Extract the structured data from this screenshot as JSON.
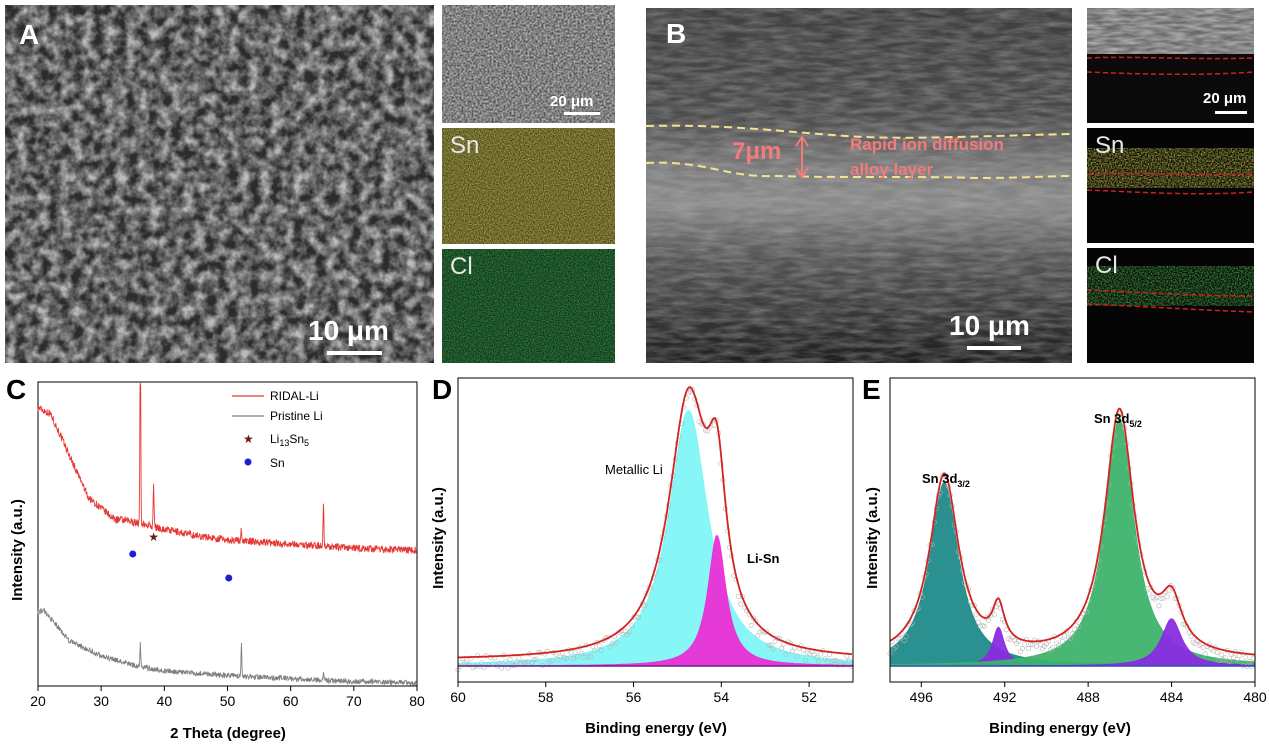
{
  "panels": {
    "A": {
      "letter": "A",
      "scale_main": "10 μm",
      "scale_inset": "20 μm",
      "map1": "Sn",
      "map2": "Cl"
    },
    "B": {
      "letter": "B",
      "scale_main": "10 μm",
      "scale_inset": "20 μm",
      "thickness": "7μm",
      "annotation_line1": "Rapid ion diffusion",
      "annotation_line2": "alloy layer",
      "map1": "Sn",
      "map2": "Cl"
    }
  },
  "colors": {
    "ridal": "#e53935",
    "pristine": "#808080",
    "li13sn5_marker": "#6b1a1a",
    "sn_marker": "#1f1fd1",
    "metallic_li_fill": "#7ff5f7",
    "li_sn_fill": "#ea2fd5",
    "envelope": "#d3221f",
    "sn32_fill": "#1f8a8a",
    "sn52_fill": "#3db36b",
    "minor_fill": "#8a2be2",
    "baseline": "#2a4db5"
  },
  "chart_data": [
    {
      "panel": "C",
      "type": "line",
      "xlabel": "2 Theta (degree)",
      "ylabel": "Intensity (a.u.)",
      "xlim": [
        20,
        80
      ],
      "xticks": [
        20,
        30,
        40,
        50,
        60,
        70,
        80
      ],
      "legend": {
        "position": "top-right",
        "entries": [
          "RIDAL-Li",
          "Pristine Li",
          "Li13Sn5",
          "Sn"
        ]
      },
      "series": [
        {
          "name": "RIDAL-Li",
          "peaks": [
            [
              36.2,
              1.0
            ],
            [
              38.3,
              0.22
            ],
            [
              52.2,
              0.06
            ],
            [
              65.2,
              0.22
            ]
          ],
          "background": [
            [
              20,
              0.85
            ],
            [
              22,
              0.82
            ],
            [
              25,
              0.62
            ],
            [
              28,
              0.42
            ],
            [
              32,
              0.32
            ],
            [
              36,
              0.3
            ],
            [
              40,
              0.27
            ],
            [
              45,
              0.24
            ],
            [
              50,
              0.22
            ],
            [
              55,
              0.21
            ],
            [
              60,
              0.2
            ],
            [
              65,
              0.19
            ],
            [
              70,
              0.18
            ],
            [
              80,
              0.17
            ]
          ]
        },
        {
          "name": "Pristine Li",
          "peaks": [
            [
              36.2,
              0.15
            ],
            [
              52.2,
              0.22
            ],
            [
              65.2,
              0.04
            ]
          ],
          "background": [
            [
              20,
              0.5
            ],
            [
              21,
              0.5
            ],
            [
              25,
              0.3
            ],
            [
              30,
              0.2
            ],
            [
              35,
              0.14
            ],
            [
              40,
              0.1
            ],
            [
              50,
              0.07
            ],
            [
              60,
              0.05
            ],
            [
              70,
              0.03
            ],
            [
              80,
              0.02
            ]
          ]
        }
      ],
      "markers": [
        {
          "type": "Li13Sn5",
          "x": 38.3
        },
        {
          "type": "Sn",
          "x": 35.0
        },
        {
          "type": "Sn",
          "x": 50.2
        }
      ]
    },
    {
      "panel": "D",
      "type": "area",
      "xlabel": "Binding energy (eV)",
      "ylabel": "Intensity (a.u.)",
      "xlim": [
        60,
        51
      ],
      "xticks": [
        60,
        58,
        56,
        54,
        52
      ],
      "annotations": [
        "Metallic Li",
        "Li-Sn"
      ],
      "series": [
        {
          "name": "Metallic Li",
          "center": 54.75,
          "height": 0.92,
          "width": 0.55
        },
        {
          "name": "Li-Sn",
          "center": 54.1,
          "height": 0.47,
          "width": 0.25
        }
      ]
    },
    {
      "panel": "E",
      "type": "area",
      "xlabel": "Binding energy (eV)",
      "ylabel": "Intensity (a.u.)",
      "xlim": [
        497.5,
        480
      ],
      "xticks": [
        496,
        492,
        488,
        484,
        480
      ],
      "annotations": [
        "Sn 3d3/2",
        "Sn 3d5/2"
      ],
      "series": [
        {
          "name": "Sn 3d3/2",
          "center": 494.9,
          "height": 0.66,
          "width": 0.85
        },
        {
          "name": "minor 492",
          "center": 492.3,
          "height": 0.14,
          "width": 0.35
        },
        {
          "name": "Sn 3d5/2",
          "center": 486.5,
          "height": 0.89,
          "width": 0.85
        },
        {
          "name": "minor 484",
          "center": 484.0,
          "height": 0.17,
          "width": 0.6
        }
      ]
    }
  ],
  "labels": {
    "C": {
      "letter": "C",
      "xlabel": "2 Theta (degree)",
      "ylabel": "Intensity (a.u.)",
      "leg1": "RIDAL-Li",
      "leg2": "Pristine Li",
      "leg3_main": "Li",
      "leg3_sub1": "13",
      "leg3_mid": "Sn",
      "leg3_sub2": "5",
      "leg4": "Sn"
    },
    "D": {
      "letter": "D",
      "xlabel": "Binding energy (eV)",
      "ylabel": "Intensity (a.u.)",
      "ann1": "Metallic Li",
      "ann2": "Li-Sn"
    },
    "E": {
      "letter": "E",
      "xlabel": "Binding energy (eV)",
      "ylabel": "Intensity (a.u.)",
      "ann1_main": "Sn 3d",
      "ann1_sub": "3/2",
      "ann2_main": "Sn 3d",
      "ann2_sub": "5/2"
    }
  }
}
